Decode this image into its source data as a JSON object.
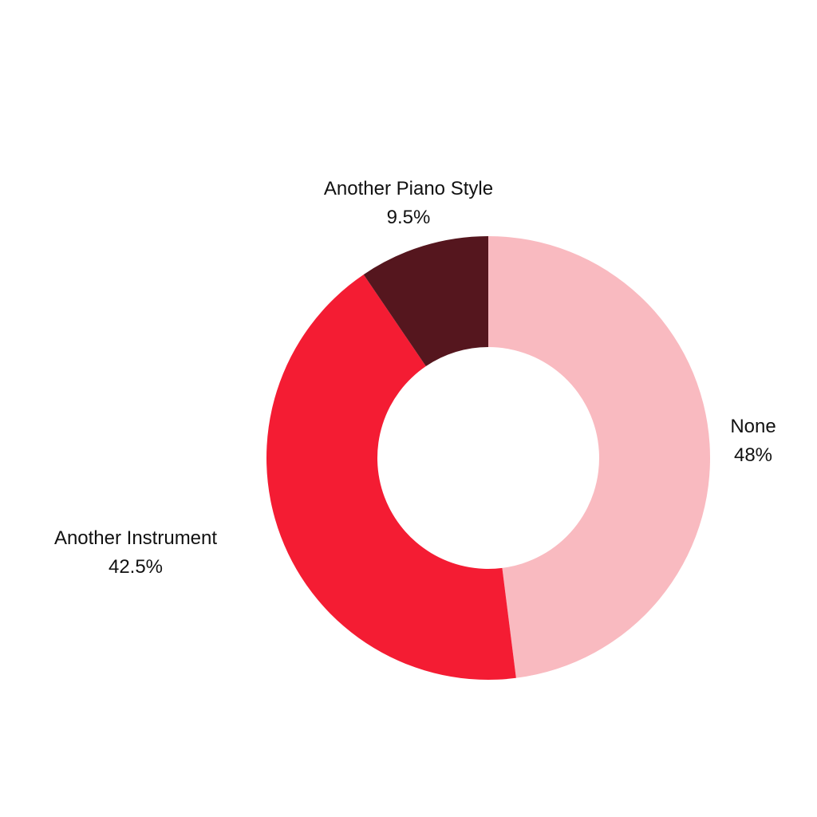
{
  "chart_data": {
    "type": "pie",
    "donut": true,
    "start_angle": "top",
    "direction": "clockwise",
    "slices": [
      {
        "label": "None",
        "value": 48,
        "value_label": "48%",
        "color": "#F9BAC0"
      },
      {
        "label": "Another Instrument",
        "value": 42.5,
        "value_label": "42.5%",
        "color": "#F41C33"
      },
      {
        "label": "Another Piano Style",
        "value": 9.5,
        "value_label": "9.5%",
        "color": "#55161E"
      }
    ]
  }
}
